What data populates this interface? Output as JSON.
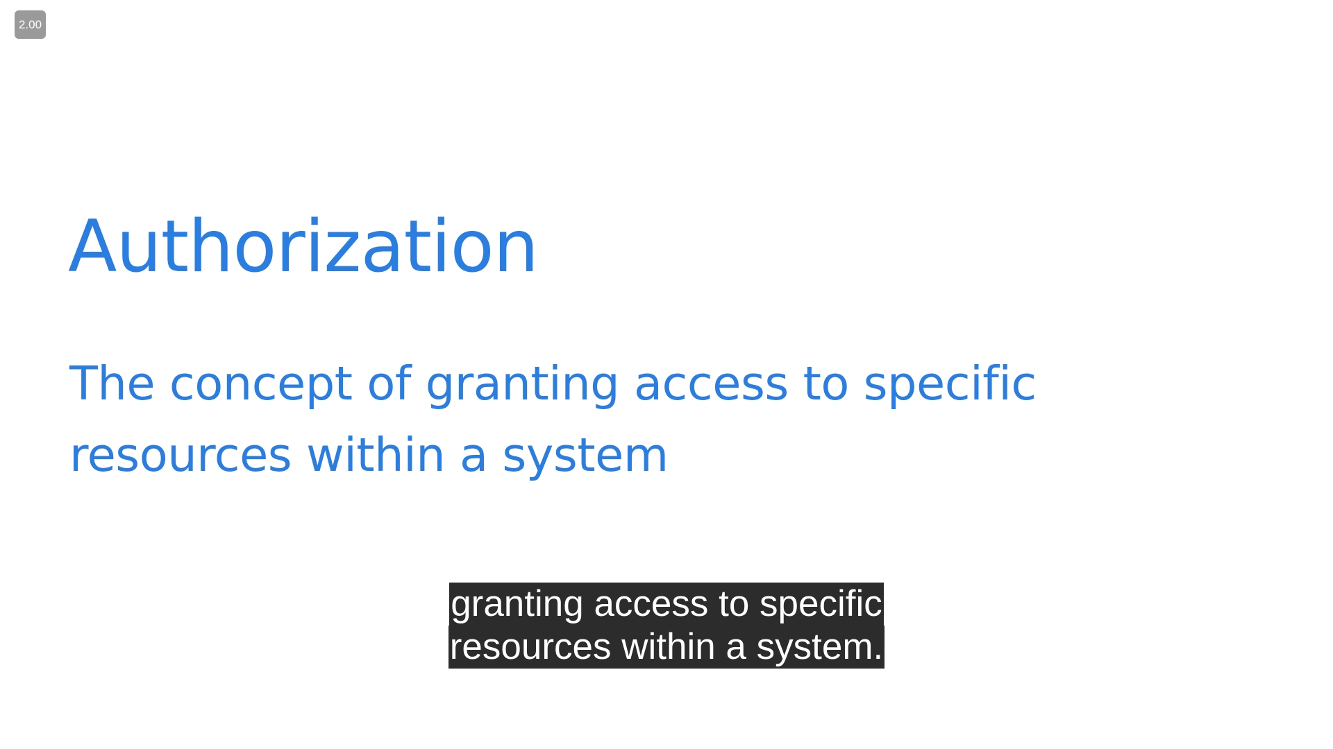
{
  "player": {
    "playback_speed": "2.00"
  },
  "slide": {
    "title": "Authorization",
    "body_lines": [
      "The concept of granting access to specific",
      "resources within a system"
    ],
    "text_color": "#2a7de1",
    "background_color": "#ffffff"
  },
  "captions": {
    "lines": [
      "granting access to specific",
      "resources within a system."
    ],
    "background_color": "#2c2c2c",
    "text_color": "#ffffff"
  }
}
